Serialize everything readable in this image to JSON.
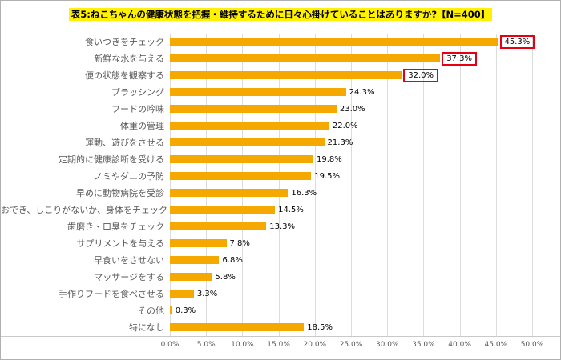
{
  "title": {
    "text": "表5:ねこちゃんの健康状態を把握・維持するために日々心掛けていることはありますか?【N=400】",
    "highlight_color": "#fff100"
  },
  "chart_data": {
    "type": "bar",
    "orientation": "horizontal",
    "title": "表5:ねこちゃんの健康状態を把握・維持するために日々心掛けていることはありますか?【N=400】",
    "categories": [
      "食いつきをチェック",
      "新鮮な水を与える",
      "便の状態を観察する",
      "ブラッシング",
      "フードの吟味",
      "体重の管理",
      "運動、遊びをさせる",
      "定期的に健康診断を受ける",
      "ノミやダニの予防",
      "早めに動物病院を受診",
      "おでき、しこりがないか、身体をチェック",
      "歯磨き・口臭をチェック",
      "サプリメントを与える",
      "早食いをさせない",
      "マッサージをする",
      "手作りフードを食べさせる",
      "その他",
      "特になし"
    ],
    "values": [
      45.3,
      37.3,
      32.0,
      24.3,
      23.0,
      22.0,
      21.3,
      19.8,
      19.5,
      16.3,
      14.5,
      13.3,
      7.8,
      6.8,
      5.8,
      3.3,
      0.3,
      18.5
    ],
    "value_labels": [
      "45.3%",
      "37.3%",
      "32.0%",
      "24.3%",
      "23.0%",
      "22.0%",
      "21.3%",
      "19.8%",
      "19.5%",
      "16.3%",
      "14.5%",
      "13.3%",
      "7.8%",
      "6.8%",
      "5.8%",
      "3.3%",
      "0.3%",
      "18.5%"
    ],
    "highlight_indices": [
      0,
      1,
      2
    ],
    "bar_color": "#f5a800",
    "highlight_box_color": "#e60012",
    "xlabel": "",
    "ylabel": "",
    "xlim": [
      0,
      50
    ],
    "xticks": [
      "0.0%",
      "5.0%",
      "10.0%",
      "15.0%",
      "20.0%",
      "25.0%",
      "30.0%",
      "35.0%",
      "40.0%",
      "45.0%",
      "50.0%"
    ],
    "grid": true,
    "legend": false
  }
}
